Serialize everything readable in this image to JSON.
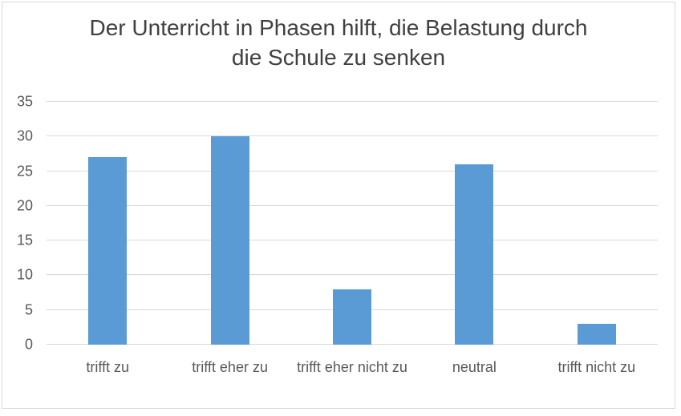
{
  "chart_data": {
    "type": "bar",
    "title": "Der Unterricht in Phasen hilft, die Belastung durch die Schule zu senken",
    "categories": [
      "trifft zu",
      "trifft eher zu",
      "trifft eher nicht zu",
      "neutral",
      "trifft nicht zu"
    ],
    "values": [
      27,
      30,
      8,
      26,
      3
    ],
    "xlabel": "",
    "ylabel": "",
    "ylim": [
      0,
      35
    ],
    "yticks": [
      0,
      5,
      10,
      15,
      20,
      25,
      30,
      35
    ],
    "grid": true,
    "legend": false,
    "colors": {
      "bar": "#5b9bd5",
      "gridline": "#d9d9d9",
      "title_text": "#404040",
      "axis_text": "#595959",
      "frame_border": "#d9d9d9",
      "background": "#ffffff"
    }
  }
}
